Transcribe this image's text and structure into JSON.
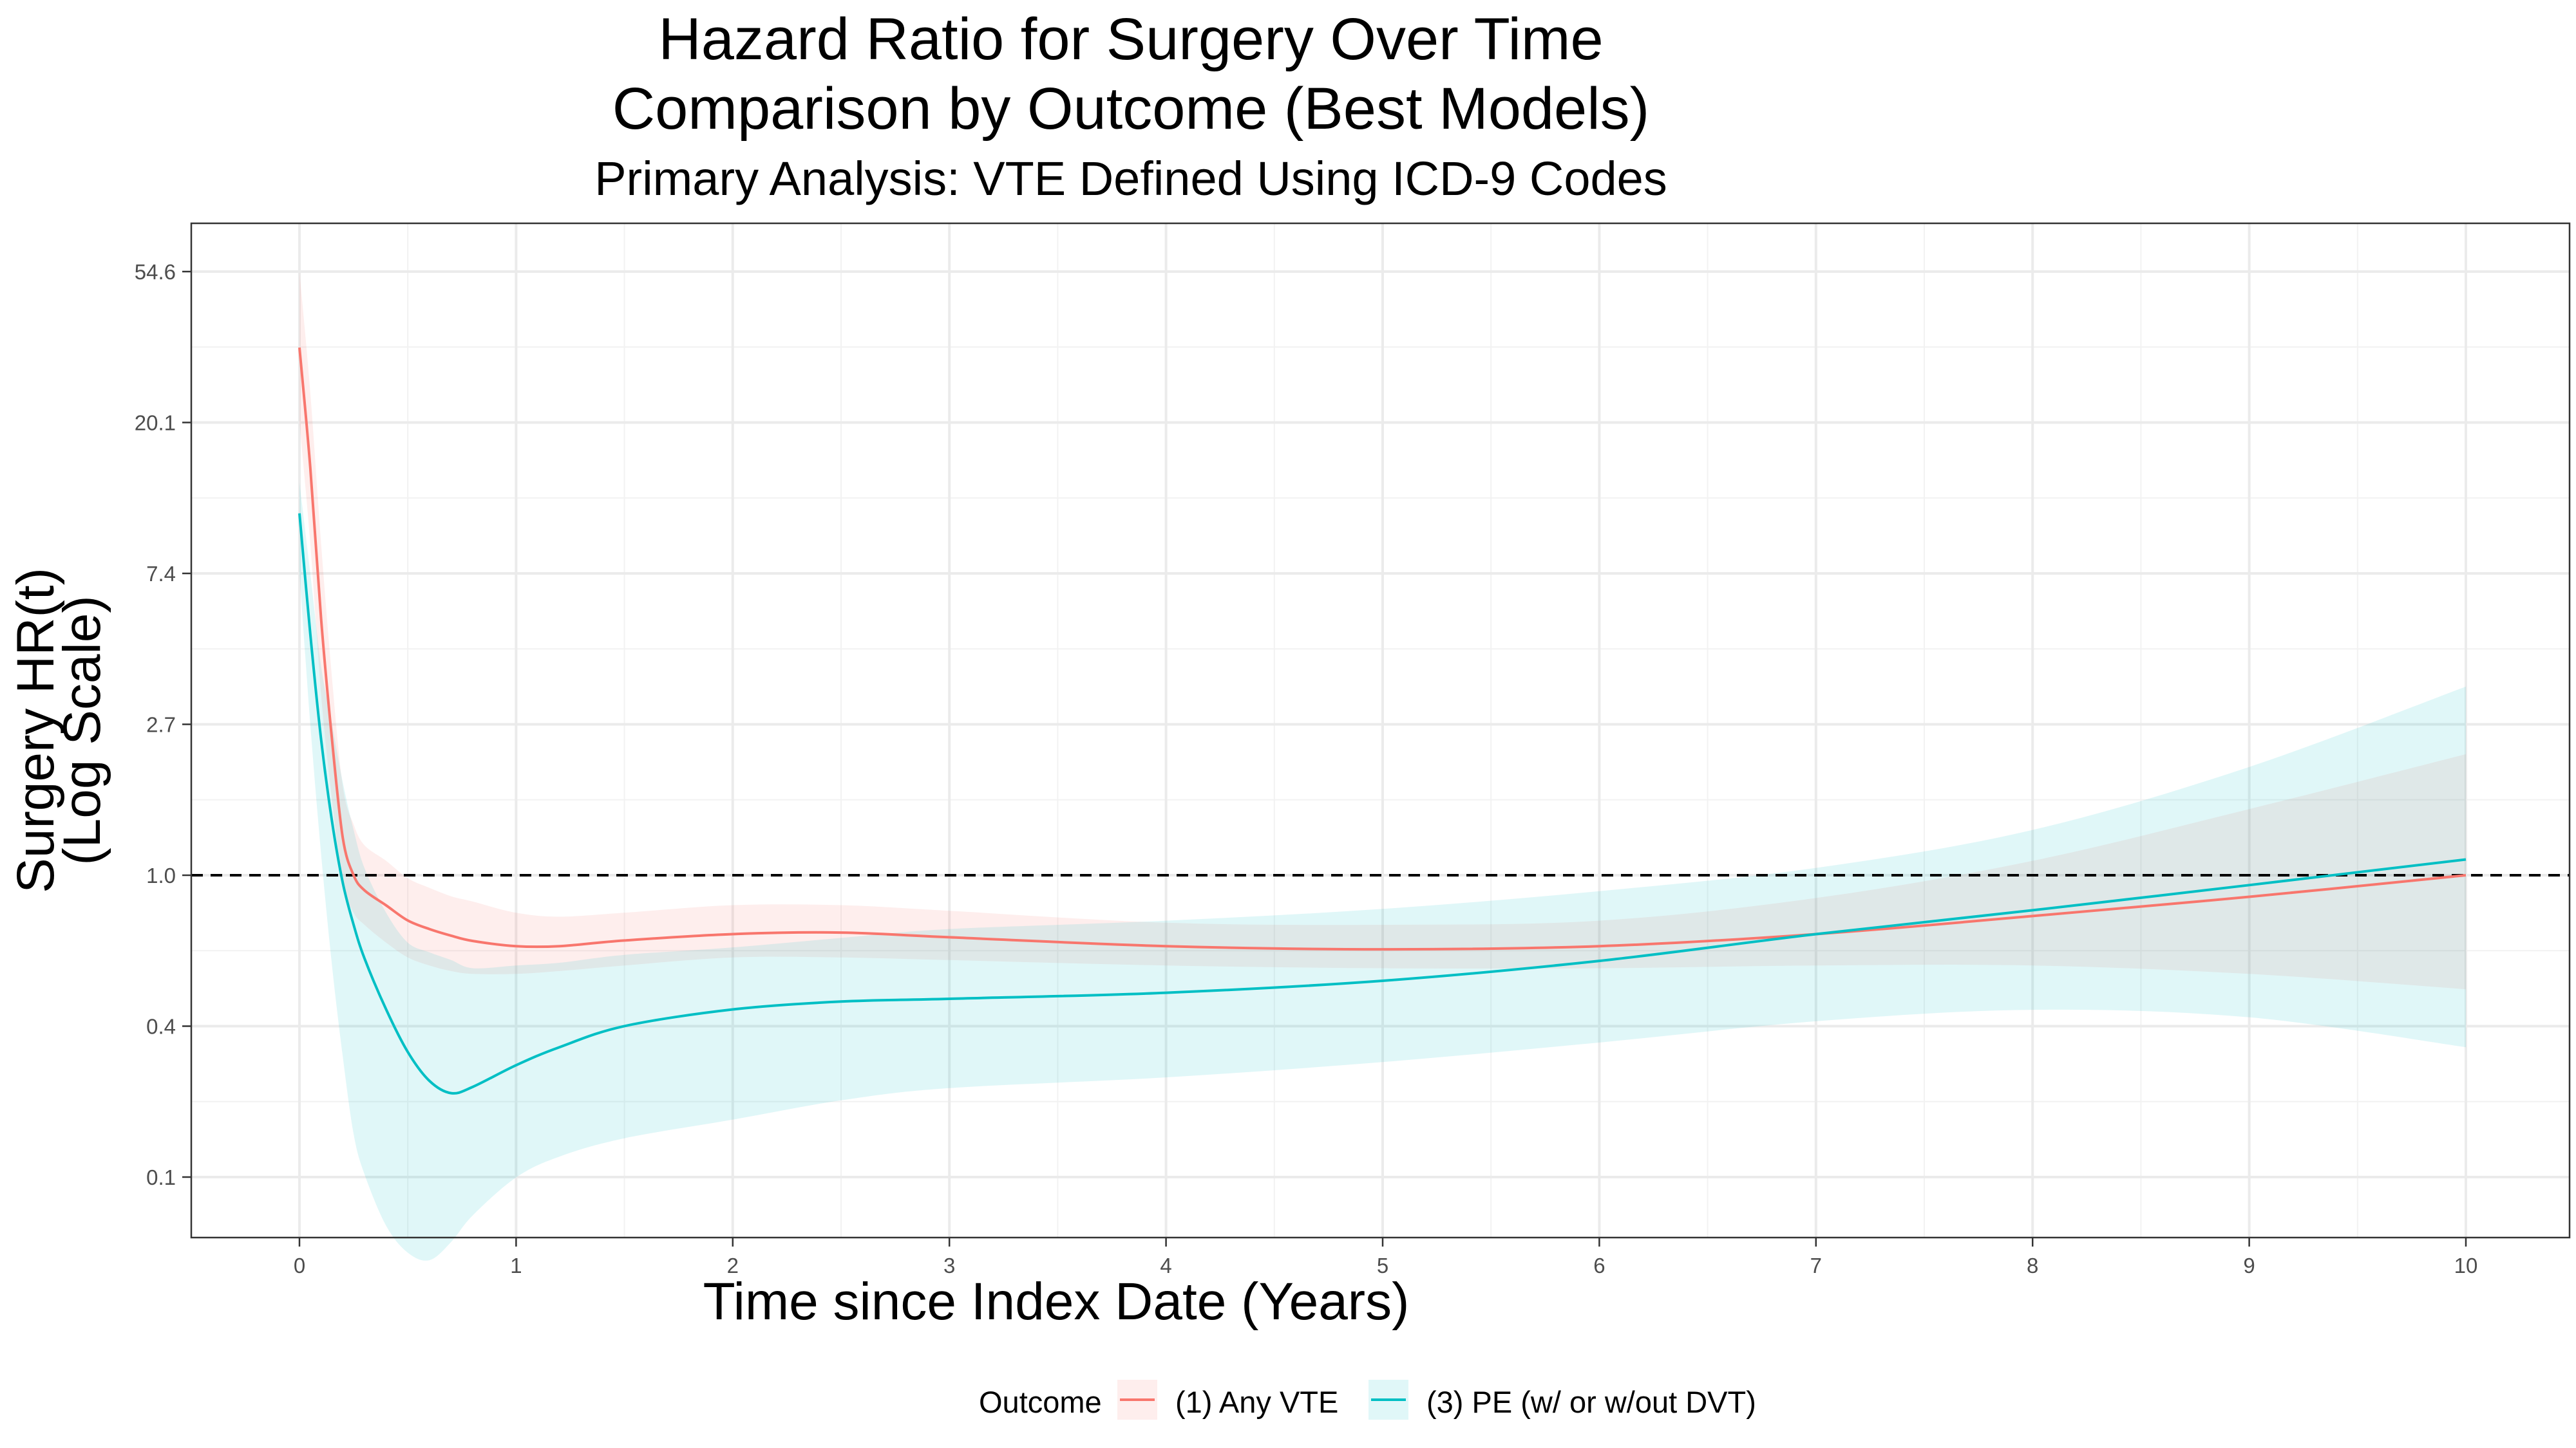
{
  "chart_data": {
    "type": "line",
    "title_lines": [
      "Hazard Ratio for Surgery Over Time",
      "Comparison by Outcome (Best Models)"
    ],
    "subtitle": "Primary Analysis: VTE Defined Using ICD-9 Codes",
    "xlabel": "Time since Index Date (Years)",
    "ylabel_lines": [
      "Surgery HR(t)",
      "(Log Scale)"
    ],
    "x_ticks": [
      "0",
      "1",
      "2",
      "3",
      "4",
      "5",
      "6",
      "7",
      "8",
      "9",
      "10"
    ],
    "y_ticks": [
      {
        "label": "0.1",
        "log_value": -2
      },
      {
        "label": "0.4",
        "log_value": -1
      },
      {
        "label": "1.0",
        "log_value": 0
      },
      {
        "label": "2.7",
        "log_value": 1
      },
      {
        "label": "7.4",
        "log_value": 2
      },
      {
        "label": "20.1",
        "log_value": 3
      },
      {
        "label": "54.6",
        "log_value": 4
      }
    ],
    "xlim": [
      -0.5,
      10.5
    ],
    "ylim_log": [
      -2.38,
      4.3
    ],
    "y_scale": "log",
    "grid": true,
    "reference_line": {
      "y": 1.0,
      "style": "dashed",
      "color": "#000000"
    },
    "legend": {
      "title": "Outcome",
      "position": "bottom"
    },
    "series": [
      {
        "name": "(1) Any VTE",
        "color": "#F8766D",
        "ribbon_color": "#F8766D",
        "x": [
          0,
          0.05,
          0.1,
          0.15,
          0.2,
          0.25,
          0.3,
          0.4,
          0.5,
          0.6,
          0.7,
          0.8,
          1.0,
          1.2,
          1.5,
          2.0,
          2.5,
          3.0,
          4.0,
          5.0,
          6.0,
          7.0,
          8.0,
          9.0,
          10.0
        ],
        "y": [
          33.0,
          14.9,
          5.47,
          2.46,
          1.28,
          1.0,
          0.905,
          0.819,
          0.741,
          0.7,
          0.67,
          0.647,
          0.625,
          0.625,
          0.649,
          0.677,
          0.684,
          0.663,
          0.625,
          0.612,
          0.625,
          0.677,
          0.763,
          0.867,
          1.0
        ],
        "lower": [
          20.1,
          9.0,
          3.3,
          1.65,
          0.95,
          0.78,
          0.72,
          0.64,
          0.58,
          0.55,
          0.53,
          0.52,
          0.52,
          0.53,
          0.55,
          0.58,
          0.58,
          0.57,
          0.55,
          0.54,
          0.54,
          0.55,
          0.55,
          0.52,
          0.47
        ],
        "upper": [
          54.6,
          24.5,
          9.0,
          3.7,
          1.8,
          1.4,
          1.22,
          1.1,
          0.98,
          0.92,
          0.87,
          0.84,
          0.78,
          0.76,
          0.78,
          0.82,
          0.82,
          0.79,
          0.73,
          0.72,
          0.74,
          0.86,
          1.1,
          1.55,
          2.23
        ]
      },
      {
        "name": "(3) PE (w/ or w/out DVT)",
        "color": "#00BFC4",
        "ribbon_color": "#00BFC4",
        "x": [
          0,
          0.05,
          0.1,
          0.15,
          0.2,
          0.25,
          0.3,
          0.4,
          0.5,
          0.6,
          0.7,
          0.8,
          1.0,
          1.2,
          1.5,
          2.0,
          2.5,
          3.0,
          4.0,
          5.0,
          6.0,
          7.0,
          8.0,
          9.0,
          10.0
        ],
        "y": [
          11.0,
          4.95,
          2.46,
          1.43,
          0.95,
          0.72,
          0.577,
          0.411,
          0.31,
          0.256,
          0.236,
          0.246,
          0.284,
          0.32,
          0.368,
          0.411,
          0.433,
          0.441,
          0.459,
          0.497,
          0.567,
          0.677,
          0.793,
          0.937,
          1.11
        ],
        "lower": [
          7.4,
          2.72,
          1.15,
          0.55,
          0.3,
          0.18,
          0.138,
          0.098,
          0.082,
          0.078,
          0.088,
          0.105,
          0.135,
          0.155,
          0.175,
          0.198,
          0.225,
          0.244,
          0.262,
          0.29,
          0.33,
          0.38,
          0.41,
          0.39,
          0.32
        ],
        "upper": [
          13.5,
          7.4,
          4.0,
          2.72,
          1.85,
          1.35,
          1.05,
          0.78,
          0.64,
          0.6,
          0.57,
          0.54,
          0.55,
          0.56,
          0.59,
          0.62,
          0.66,
          0.7,
          0.74,
          0.8,
          0.9,
          1.05,
          1.35,
          2.05,
          3.49
        ]
      }
    ]
  }
}
